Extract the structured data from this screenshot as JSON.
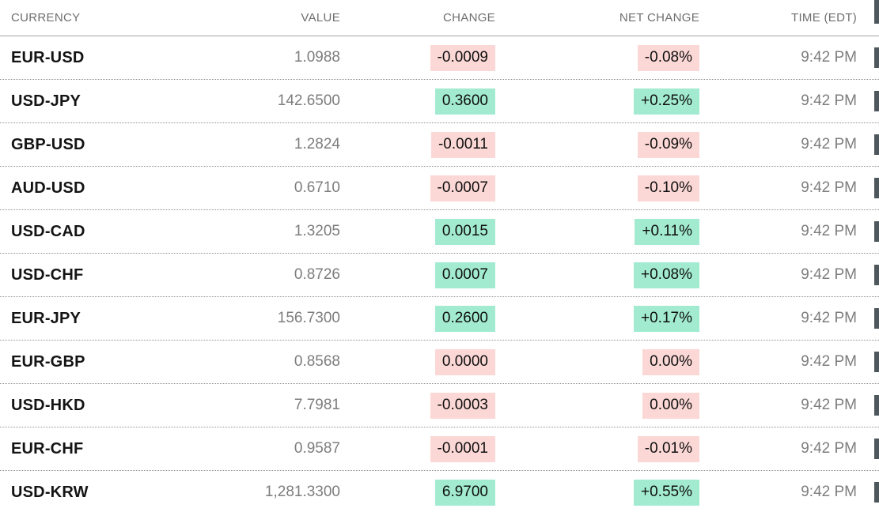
{
  "header": {
    "columns": [
      "CURRENCY",
      "VALUE",
      "CHANGE",
      "NET CHANGE",
      "TIME (EDT)"
    ]
  },
  "rows": [
    {
      "pair": "EUR-USD",
      "value": "1.0988",
      "change": "-0.0009",
      "change_direction": "negative",
      "net_change": "-0.08%",
      "net_change_direction": "negative",
      "time": "9:42 PM"
    },
    {
      "pair": "USD-JPY",
      "value": "142.6500",
      "change": "0.3600",
      "change_direction": "positive",
      "net_change": "+0.25%",
      "net_change_direction": "positive",
      "time": "9:42 PM"
    },
    {
      "pair": "GBP-USD",
      "value": "1.2824",
      "change": "-0.0011",
      "change_direction": "negative",
      "net_change": "-0.09%",
      "net_change_direction": "negative",
      "time": "9:42 PM"
    },
    {
      "pair": "AUD-USD",
      "value": "0.6710",
      "change": "-0.0007",
      "change_direction": "negative",
      "net_change": "-0.10%",
      "net_change_direction": "negative",
      "time": "9:42 PM"
    },
    {
      "pair": "USD-CAD",
      "value": "1.3205",
      "change": "0.0015",
      "change_direction": "positive",
      "net_change": "+0.11%",
      "net_change_direction": "positive",
      "time": "9:42 PM"
    },
    {
      "pair": "USD-CHF",
      "value": "0.8726",
      "change": "0.0007",
      "change_direction": "positive",
      "net_change": "+0.08%",
      "net_change_direction": "positive",
      "time": "9:42 PM"
    },
    {
      "pair": "EUR-JPY",
      "value": "156.7300",
      "change": "0.2600",
      "change_direction": "positive",
      "net_change": "+0.17%",
      "net_change_direction": "positive",
      "time": "9:42 PM"
    },
    {
      "pair": "EUR-GBP",
      "value": "0.8568",
      "change": "0.0000",
      "change_direction": "negative",
      "net_change": "0.00%",
      "net_change_direction": "negative",
      "time": "9:42 PM"
    },
    {
      "pair": "USD-HKD",
      "value": "7.7981",
      "change": "-0.0003",
      "change_direction": "negative",
      "net_change": "0.00%",
      "net_change_direction": "negative",
      "time": "9:42 PM"
    },
    {
      "pair": "EUR-CHF",
      "value": "0.9587",
      "change": "-0.0001",
      "change_direction": "negative",
      "net_change": "-0.01%",
      "net_change_direction": "negative",
      "time": "9:42 PM"
    },
    {
      "pair": "USD-KRW",
      "value": "1,281.3300",
      "change": "6.9700",
      "change_direction": "positive",
      "net_change": "+0.55%",
      "net_change_direction": "positive",
      "time": "9:42 PM"
    }
  ],
  "colors": {
    "positive_bg": "#a2ebd1",
    "negative_bg": "#fbd8d6",
    "badge_text": "#0f0f0f",
    "header_text": "#6e6e6e",
    "muted_text": "#7d7d7d",
    "pair_text": "#141414",
    "clipped_mark": "#4e585c"
  }
}
